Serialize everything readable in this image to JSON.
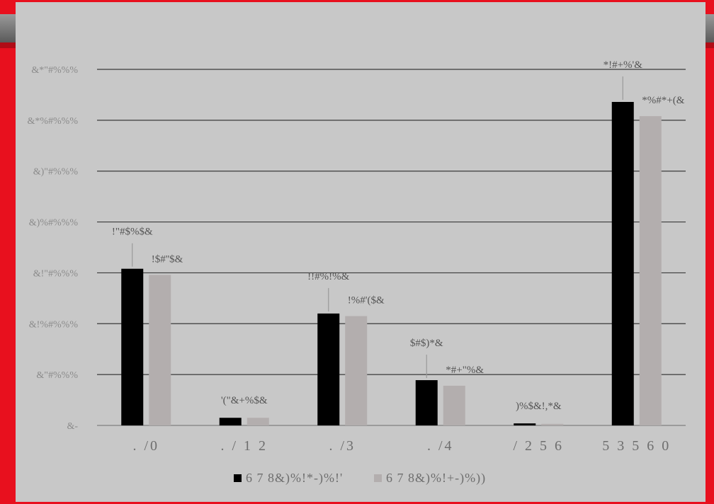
{
  "chart_data": {
    "type": "bar",
    "title": "",
    "xlabel": "",
    "ylabel": "",
    "categories": [
      ". /0",
      ". / 1 2",
      ". /3",
      ". /4",
      "/ 2 5 6",
      "5 3 5 6 0"
    ],
    "ylim": [
      0,
      3500
    ],
    "yticks": [
      0,
      500,
      1000,
      1500,
      2000,
      2500,
      3000,
      3500
    ],
    "ytick_labels": [
      "&-",
      "&\"#%%%",
      "&!%#%%%",
      "&!\"#%%%",
      "&)%#%%%",
      "&)\"#%%%",
      "&*%#%%%",
      "&*\"#%%%"
    ],
    "grid": true,
    "legend_position": "bottom",
    "series": [
      {
        "name": "6 7 8&)%!*-)%!'",
        "color": "#000000",
        "values": [
          1540,
          75,
          1100,
          445,
          20,
          3180
        ],
        "data_labels": [
          "!\"#$%$&",
          "'(\"&+%$&",
          "!!#%!%&",
          "$#$)*&",
          ")%$&!,*&",
          "*!#+%'&"
        ]
      },
      {
        "name": "6 7 8&)%!+-)%))",
        "color": "#b3aeae",
        "values": [
          1480,
          75,
          1075,
          390,
          15,
          3040
        ],
        "data_labels": [
          "!$#''$&",
          "",
          "!%#'($&",
          "*#+\"%&",
          "",
          "*%#*+(&"
        ]
      }
    ]
  }
}
